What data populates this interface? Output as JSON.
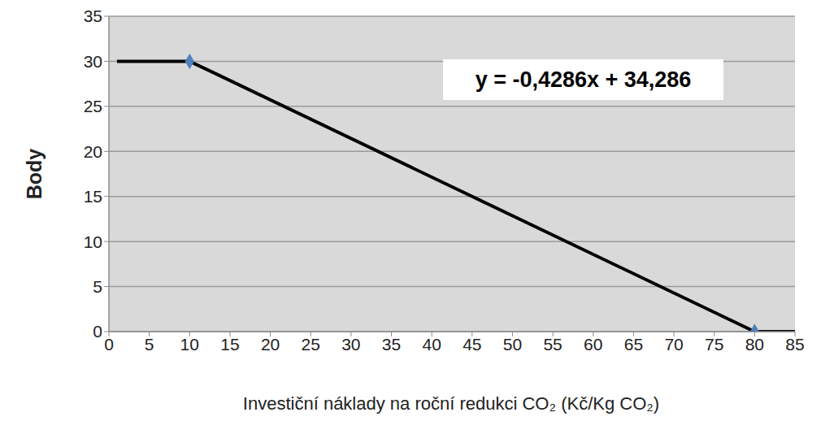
{
  "chart_data": {
    "type": "line",
    "annotation": "y = -0,4286x + 34,286",
    "y_label": "Body",
    "x_label": "Investiční náklady na roční redukci CO₂ (Kč/Kg CO₂)",
    "xlim": [
      0,
      85
    ],
    "xticks": [
      0,
      5,
      10,
      15,
      20,
      25,
      30,
      35,
      40,
      45,
      50,
      55,
      60,
      65,
      70,
      75,
      80,
      85
    ],
    "ylim": [
      0,
      35
    ],
    "yticks": [
      0,
      5,
      10,
      15,
      20,
      25,
      30,
      35
    ],
    "grid": true,
    "series": [
      {
        "type": "line",
        "color": "#000000",
        "marker": "none",
        "x": [
          1,
          10,
          80,
          85
        ],
        "values": [
          30,
          30,
          0,
          0
        ]
      },
      {
        "type": "scatter",
        "color": "#4f81bd",
        "marker": "diamond",
        "x": [
          10,
          80
        ],
        "values": [
          30,
          0
        ]
      }
    ]
  }
}
